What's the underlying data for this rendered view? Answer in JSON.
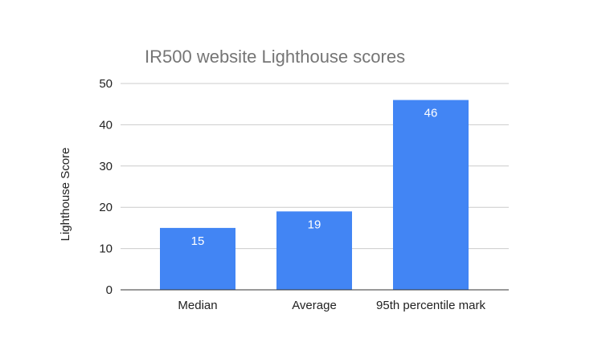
{
  "chart_data": {
    "type": "bar",
    "title": "IR500 website Lighthouse scores",
    "xlabel": "",
    "ylabel": "Lighthouse Score",
    "categories": [
      "Median",
      "Average",
      "95th percentile mark"
    ],
    "values": [
      15,
      19,
      46
    ],
    "data_labels": [
      "15",
      "19",
      "46"
    ],
    "ylim": [
      0,
      50
    ],
    "yticks": [
      0,
      10,
      20,
      30,
      40,
      50
    ],
    "grid": true,
    "legend": "none",
    "colors": {
      "bar": "#4285f4",
      "grid": "#cccccc",
      "axis": "#333333"
    }
  }
}
